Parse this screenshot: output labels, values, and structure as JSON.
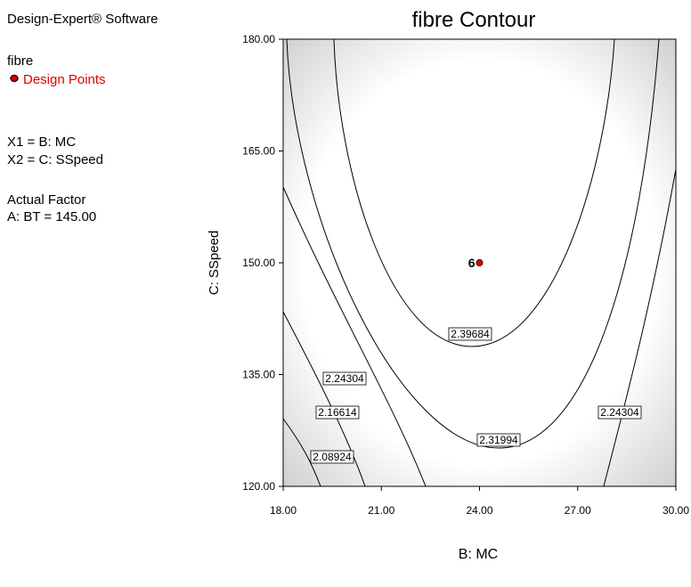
{
  "software": "Design-Expert® Software",
  "response": "fibre",
  "legend": "Design Points",
  "factors": [
    "X1 = B: MC",
    "X2 = C: SSpeed"
  ],
  "actual_factor_heading": "Actual Factor",
  "actual_factor": "A: BT = 145.00",
  "chart_data": {
    "type": "contour",
    "title": "fibre Contour",
    "xlabel": "B: MC",
    "ylabel": "C: SSpeed",
    "xlim": [
      18,
      30
    ],
    "ylim": [
      120,
      180
    ],
    "xticks": [
      {
        "value": 18,
        "label": "18.00"
      },
      {
        "value": 21,
        "label": "21.00"
      },
      {
        "value": 24,
        "label": "24.00"
      },
      {
        "value": 27,
        "label": "27.00"
      },
      {
        "value": 30,
        "label": "30.00"
      }
    ],
    "yticks": [
      {
        "value": 120,
        "label": "120.00"
      },
      {
        "value": 135,
        "label": "135.00"
      },
      {
        "value": 150,
        "label": "150.00"
      },
      {
        "value": 165,
        "label": "165.00"
      },
      {
        "value": 180,
        "label": "180.00"
      }
    ],
    "levels": [
      2.08924,
      2.16614,
      2.24304,
      2.31994,
      2.39684
    ],
    "points": [
      {
        "x": 24,
        "y": 150,
        "replicates": 6,
        "color": "#e00000"
      }
    ]
  }
}
